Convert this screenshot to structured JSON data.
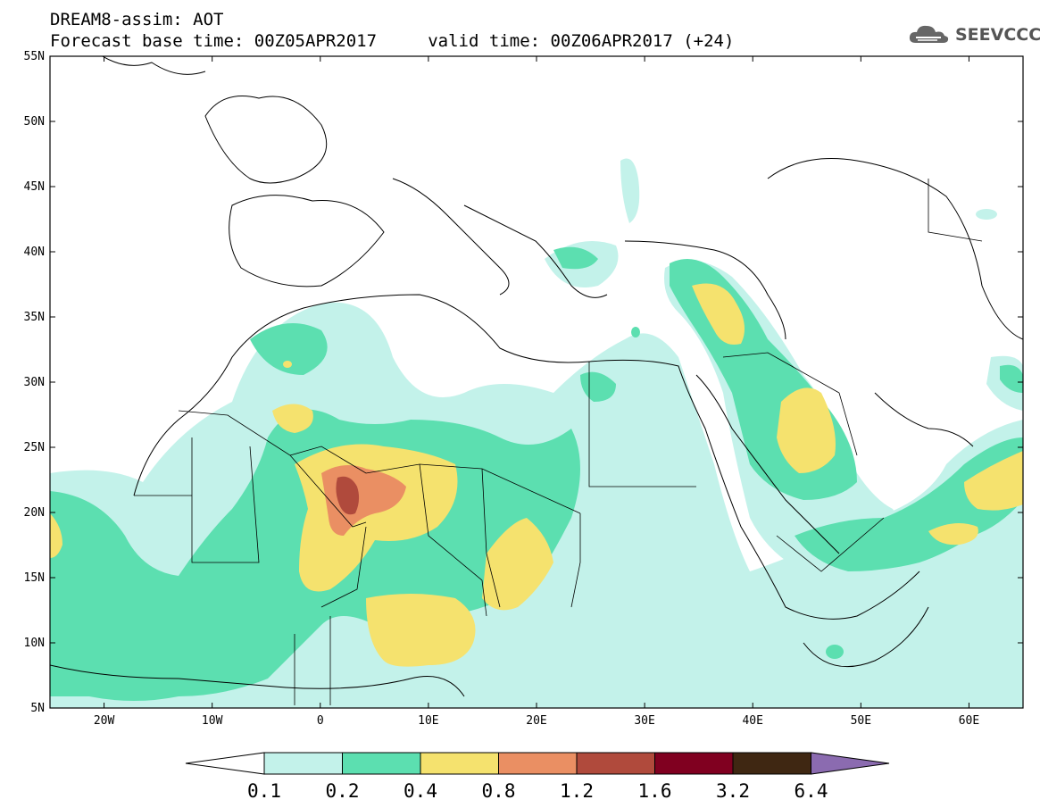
{
  "header": {
    "title_line1": "DREAM8-assim: AOT",
    "title_line2": "Forecast base time: 00Z05APR2017     valid time: 00Z06APR2017 (+24)",
    "logo_text": "SEEVCCC",
    "logo_icon": "cloud-icon"
  },
  "map": {
    "type": "filled-contour-map",
    "variable": "AOT",
    "lon_range": [
      -25,
      65
    ],
    "lat_range": [
      5,
      55
    ],
    "lat_ticks": [
      "55N",
      "50N",
      "45N",
      "40N",
      "35N",
      "30N",
      "25N",
      "20N",
      "15N",
      "10N",
      "5N"
    ],
    "lon_ticks": [
      "20W",
      "10W",
      "0",
      "10E",
      "20E",
      "30E",
      "40E",
      "50E",
      "60E"
    ],
    "coastlines": true,
    "country_borders": true
  },
  "colorbar": {
    "labels": [
      "0.1",
      "0.2",
      "0.4",
      "0.8",
      "1.2",
      "1.6",
      "3.2",
      "6.4"
    ],
    "colors": [
      "#c3f2ea",
      "#5cdfb0",
      "#f5e26e",
      "#ea8f63",
      "#b04a3c",
      "#800020",
      "#3f2712",
      "#8b6bb0"
    ],
    "under_color": "#ffffff",
    "over_color": "#8b6bb0"
  }
}
